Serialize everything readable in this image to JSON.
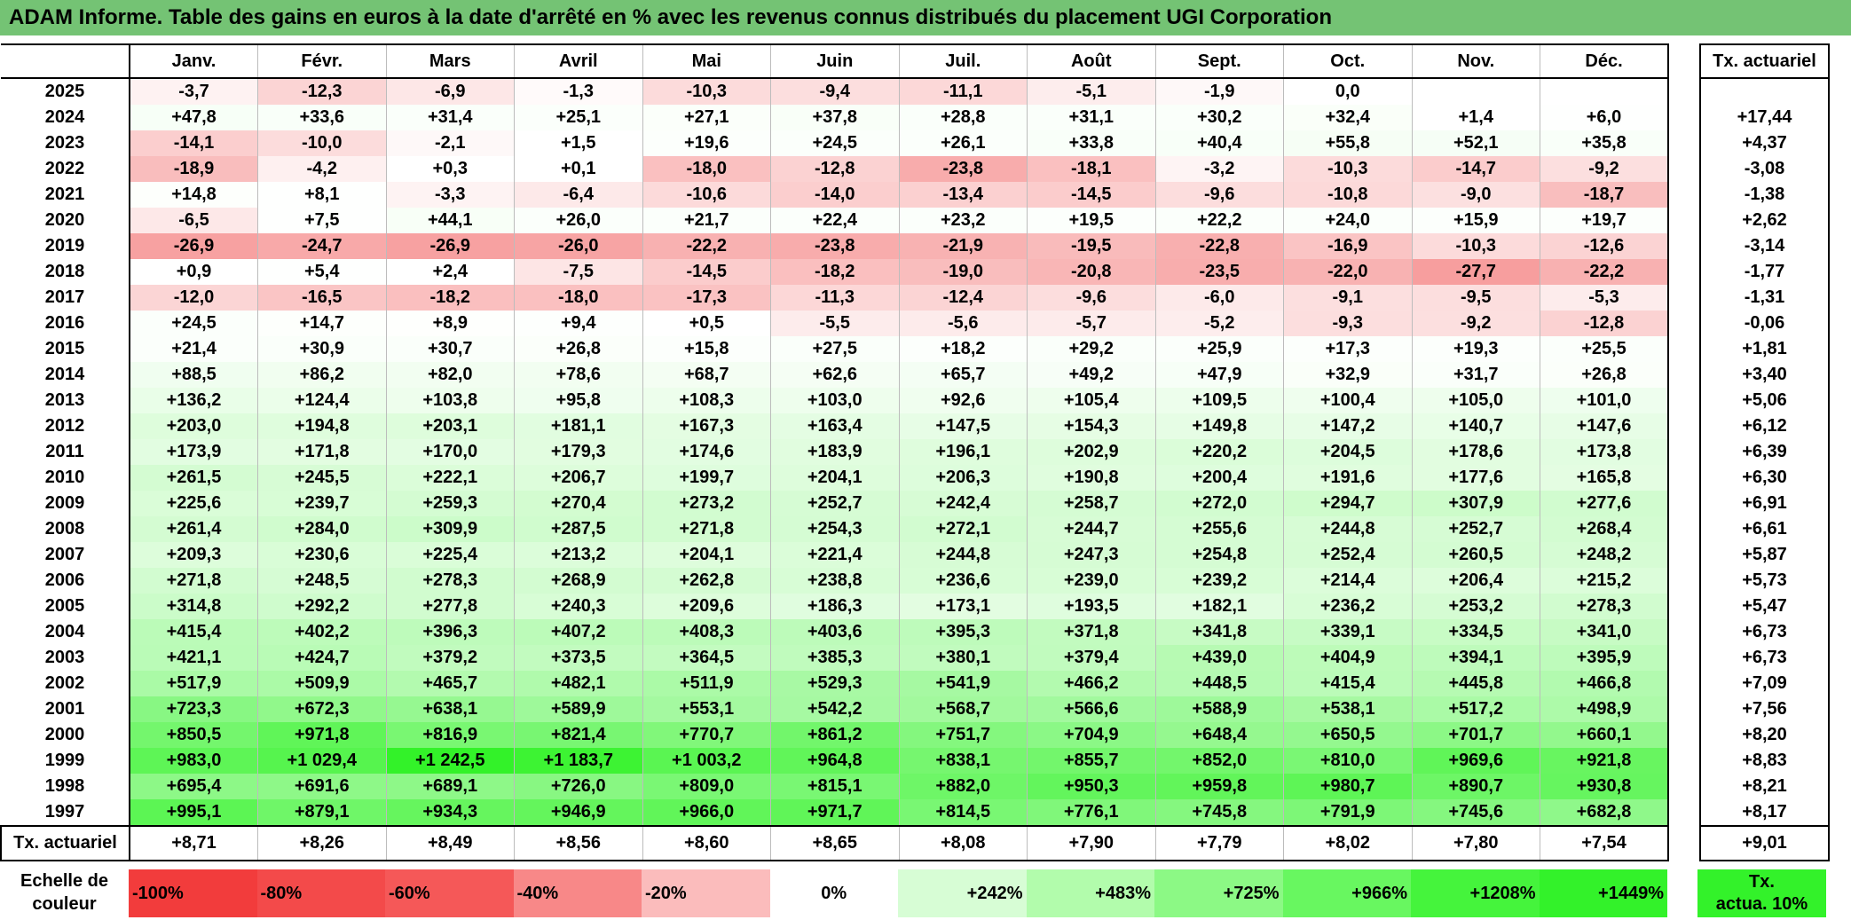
{
  "title": "ADAM Informe. Table des gains en euros à la date d'arrêté en % avec les revenus connus distribués du placement UGI Corporation",
  "months": [
    "Janv.",
    "Févr.",
    "Mars",
    "Avril",
    "Mai",
    "Juin",
    "Juil.",
    "Août",
    "Sept.",
    "Oct.",
    "Nov.",
    "Déc."
  ],
  "rate_header": "Tx. actuariel",
  "rows": [
    {
      "year": "2025",
      "values": [
        "-3,7",
        "-12,3",
        "-6,9",
        "-1,3",
        "-10,3",
        "-9,4",
        "-11,1",
        "-5,1",
        "-1,9",
        "0,0",
        "",
        ""
      ],
      "rate": ""
    },
    {
      "year": "2024",
      "values": [
        "+47,8",
        "+33,6",
        "+31,4",
        "+25,1",
        "+27,1",
        "+37,8",
        "+28,8",
        "+31,1",
        "+30,2",
        "+32,4",
        "+1,4",
        "+6,0"
      ],
      "rate": "+17,44"
    },
    {
      "year": "2023",
      "values": [
        "-14,1",
        "-10,0",
        "-2,1",
        "+1,5",
        "+19,6",
        "+24,5",
        "+26,1",
        "+33,8",
        "+40,4",
        "+55,8",
        "+52,1",
        "+35,8"
      ],
      "rate": "+4,37"
    },
    {
      "year": "2022",
      "values": [
        "-18,9",
        "-4,2",
        "+0,3",
        "+0,1",
        "-18,0",
        "-12,8",
        "-23,8",
        "-18,1",
        "-3,2",
        "-10,3",
        "-14,7",
        "-9,2"
      ],
      "rate": "-3,08"
    },
    {
      "year": "2021",
      "values": [
        "+14,8",
        "+8,1",
        "-3,3",
        "-6,4",
        "-10,6",
        "-14,0",
        "-13,4",
        "-14,5",
        "-9,6",
        "-10,8",
        "-9,0",
        "-18,7"
      ],
      "rate": "-1,38"
    },
    {
      "year": "2020",
      "values": [
        "-6,5",
        "+7,5",
        "+44,1",
        "+26,0",
        "+21,7",
        "+22,4",
        "+23,2",
        "+19,5",
        "+22,2",
        "+24,0",
        "+15,9",
        "+19,7"
      ],
      "rate": "+2,62"
    },
    {
      "year": "2019",
      "values": [
        "-26,9",
        "-24,7",
        "-26,9",
        "-26,0",
        "-22,2",
        "-23,8",
        "-21,9",
        "-19,5",
        "-22,8",
        "-16,9",
        "-10,3",
        "-12,6"
      ],
      "rate": "-3,14"
    },
    {
      "year": "2018",
      "values": [
        "+0,9",
        "+5,4",
        "+2,4",
        "-7,5",
        "-14,5",
        "-18,2",
        "-19,0",
        "-20,8",
        "-23,5",
        "-22,0",
        "-27,7",
        "-22,2"
      ],
      "rate": "-1,77"
    },
    {
      "year": "2017",
      "values": [
        "-12,0",
        "-16,5",
        "-18,2",
        "-18,0",
        "-17,3",
        "-11,3",
        "-12,4",
        "-9,6",
        "-6,0",
        "-9,1",
        "-9,5",
        "-5,3"
      ],
      "rate": "-1,31"
    },
    {
      "year": "2016",
      "values": [
        "+24,5",
        "+14,7",
        "+8,9",
        "+9,4",
        "+0,5",
        "-5,5",
        "-5,6",
        "-5,7",
        "-5,2",
        "-9,3",
        "-9,2",
        "-12,8"
      ],
      "rate": "-0,06"
    },
    {
      "year": "2015",
      "values": [
        "+21,4",
        "+30,9",
        "+30,7",
        "+26,8",
        "+15,8",
        "+27,5",
        "+18,2",
        "+29,2",
        "+25,9",
        "+17,3",
        "+19,3",
        "+25,5"
      ],
      "rate": "+1,81"
    },
    {
      "year": "2014",
      "values": [
        "+88,5",
        "+86,2",
        "+82,0",
        "+78,6",
        "+68,7",
        "+62,6",
        "+65,7",
        "+49,2",
        "+47,9",
        "+32,9",
        "+31,7",
        "+26,8"
      ],
      "rate": "+3,40"
    },
    {
      "year": "2013",
      "values": [
        "+136,2",
        "+124,4",
        "+103,8",
        "+95,8",
        "+108,3",
        "+103,0",
        "+92,6",
        "+105,4",
        "+109,5",
        "+100,4",
        "+105,0",
        "+101,0"
      ],
      "rate": "+5,06"
    },
    {
      "year": "2012",
      "values": [
        "+203,0",
        "+194,8",
        "+203,1",
        "+181,1",
        "+167,3",
        "+163,4",
        "+147,5",
        "+154,3",
        "+149,8",
        "+147,2",
        "+140,7",
        "+147,6"
      ],
      "rate": "+6,12"
    },
    {
      "year": "2011",
      "values": [
        "+173,9",
        "+171,8",
        "+170,0",
        "+179,3",
        "+174,6",
        "+183,9",
        "+196,1",
        "+202,9",
        "+220,2",
        "+204,5",
        "+178,6",
        "+173,8"
      ],
      "rate": "+6,39"
    },
    {
      "year": "2010",
      "values": [
        "+261,5",
        "+245,5",
        "+222,1",
        "+206,7",
        "+199,7",
        "+204,1",
        "+206,3",
        "+190,8",
        "+200,4",
        "+191,6",
        "+177,6",
        "+165,8"
      ],
      "rate": "+6,30"
    },
    {
      "year": "2009",
      "values": [
        "+225,6",
        "+239,7",
        "+259,3",
        "+270,4",
        "+273,2",
        "+252,7",
        "+242,4",
        "+258,7",
        "+272,0",
        "+294,7",
        "+307,9",
        "+277,6"
      ],
      "rate": "+6,91"
    },
    {
      "year": "2008",
      "values": [
        "+261,4",
        "+284,0",
        "+309,9",
        "+287,5",
        "+271,8",
        "+254,3",
        "+272,1",
        "+244,7",
        "+255,6",
        "+244,8",
        "+252,7",
        "+268,4"
      ],
      "rate": "+6,61"
    },
    {
      "year": "2007",
      "values": [
        "+209,3",
        "+230,6",
        "+225,4",
        "+213,2",
        "+204,1",
        "+221,4",
        "+244,8",
        "+247,3",
        "+254,8",
        "+252,4",
        "+260,5",
        "+248,2"
      ],
      "rate": "+5,87"
    },
    {
      "year": "2006",
      "values": [
        "+271,8",
        "+248,5",
        "+278,3",
        "+268,9",
        "+262,8",
        "+238,8",
        "+236,6",
        "+239,0",
        "+239,2",
        "+214,4",
        "+206,4",
        "+215,2"
      ],
      "rate": "+5,73"
    },
    {
      "year": "2005",
      "values": [
        "+314,8",
        "+292,2",
        "+277,8",
        "+240,3",
        "+209,6",
        "+186,3",
        "+173,1",
        "+193,5",
        "+182,1",
        "+236,2",
        "+253,2",
        "+278,3"
      ],
      "rate": "+5,47"
    },
    {
      "year": "2004",
      "values": [
        "+415,4",
        "+402,2",
        "+396,3",
        "+407,2",
        "+408,3",
        "+403,6",
        "+395,3",
        "+371,8",
        "+341,8",
        "+339,1",
        "+334,5",
        "+341,0"
      ],
      "rate": "+6,73"
    },
    {
      "year": "2003",
      "values": [
        "+421,1",
        "+424,7",
        "+379,2",
        "+373,5",
        "+364,5",
        "+385,3",
        "+380,1",
        "+379,4",
        "+439,0",
        "+404,9",
        "+394,1",
        "+395,9"
      ],
      "rate": "+6,73"
    },
    {
      "year": "2002",
      "values": [
        "+517,9",
        "+509,9",
        "+465,7",
        "+482,1",
        "+511,9",
        "+529,3",
        "+541,9",
        "+466,2",
        "+448,5",
        "+415,4",
        "+445,8",
        "+466,8"
      ],
      "rate": "+7,09"
    },
    {
      "year": "2001",
      "values": [
        "+723,3",
        "+672,3",
        "+638,1",
        "+589,9",
        "+553,1",
        "+542,2",
        "+568,7",
        "+566,6",
        "+588,9",
        "+538,1",
        "+517,2",
        "+498,9"
      ],
      "rate": "+7,56"
    },
    {
      "year": "2000",
      "values": [
        "+850,5",
        "+971,8",
        "+816,9",
        "+821,4",
        "+770,7",
        "+861,2",
        "+751,7",
        "+704,9",
        "+648,4",
        "+650,5",
        "+701,7",
        "+660,1"
      ],
      "rate": "+8,20"
    },
    {
      "year": "1999",
      "values": [
        "+983,0",
        "+1 029,4",
        "+1 242,5",
        "+1 183,7",
        "+1 003,2",
        "+964,8",
        "+838,1",
        "+855,7",
        "+852,0",
        "+810,0",
        "+969,6",
        "+921,8"
      ],
      "rate": "+8,83"
    },
    {
      "year": "1998",
      "values": [
        "+695,4",
        "+691,6",
        "+689,1",
        "+726,0",
        "+809,0",
        "+815,1",
        "+882,0",
        "+950,3",
        "+959,8",
        "+980,7",
        "+890,7",
        "+930,8"
      ],
      "rate": "+8,21"
    },
    {
      "year": "1997",
      "values": [
        "+995,1",
        "+879,1",
        "+934,3",
        "+946,9",
        "+966,0",
        "+971,7",
        "+814,5",
        "+776,1",
        "+745,8",
        "+791,9",
        "+745,6",
        "+682,8"
      ],
      "rate": "+8,17"
    }
  ],
  "footer": {
    "label": "Tx. actuariel",
    "values": [
      "+8,71",
      "+8,26",
      "+8,49",
      "+8,56",
      "+8,60",
      "+8,65",
      "+8,08",
      "+7,90",
      "+7,79",
      "+8,02",
      "+7,80",
      "+7,54"
    ],
    "total": "+9,01"
  },
  "scale": {
    "label_line1": "Echelle de",
    "label_line2": "couleur",
    "items": [
      {
        "text": "-100%",
        "align": "left",
        "color": "#f23c3c"
      },
      {
        "text": "-80%",
        "align": "left",
        "color": "#f34a4a"
      },
      {
        "text": "-60%",
        "align": "left",
        "color": "#f55858"
      },
      {
        "text": "-40%",
        "align": "left",
        "color": "#f88888"
      },
      {
        "text": "-20%",
        "align": "left",
        "color": "#fbbcbc"
      },
      {
        "text": "0%",
        "align": "center",
        "color": "#ffffff"
      },
      {
        "text": "+242%",
        "align": "right",
        "color": "#d7fdd5"
      },
      {
        "text": "+483%",
        "align": "right",
        "color": "#b2fcac"
      },
      {
        "text": "+725%",
        "align": "right",
        "color": "#8cf985"
      },
      {
        "text": "+966%",
        "align": "right",
        "color": "#68f760"
      },
      {
        "text": "+1208%",
        "align": "right",
        "color": "#45f43c"
      },
      {
        "text": "+1449%",
        "align": "right",
        "color": "#33f22a"
      }
    ],
    "rate_line1": "Tx.",
    "rate_line2": "actua. 10%",
    "rate_color": "#33f22a"
  }
}
